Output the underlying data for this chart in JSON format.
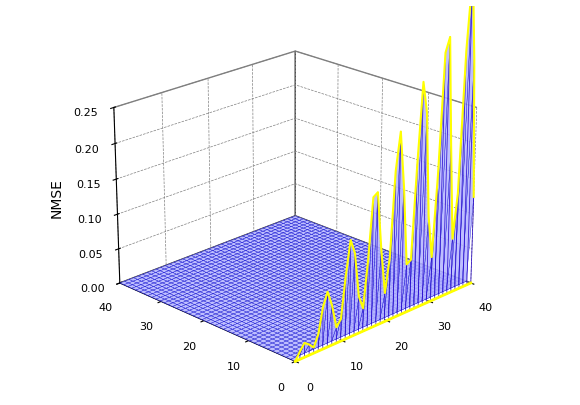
{
  "N": 42,
  "xmax": 40,
  "ymax": 40,
  "zmax": 0.25,
  "zlabel": "NMSE",
  "xticks": [
    0,
    10,
    20,
    30,
    40
  ],
  "yticks": [
    0,
    10,
    20,
    30,
    40
  ],
  "zticks": [
    0,
    0.05,
    0.1,
    0.15,
    0.2,
    0.25
  ],
  "surface_facecolor": "#aaaaff",
  "surface_edgecolor": "#0000cc",
  "spike_color_yellow": "#ffff00",
  "spike_color_blue": "#2200cc",
  "background_color": "#ffffff",
  "elev": 22,
  "azim": -135,
  "spike_envelope_max": 0.27,
  "spike_freq": 1.2,
  "spike_amp_factor": 0.7
}
